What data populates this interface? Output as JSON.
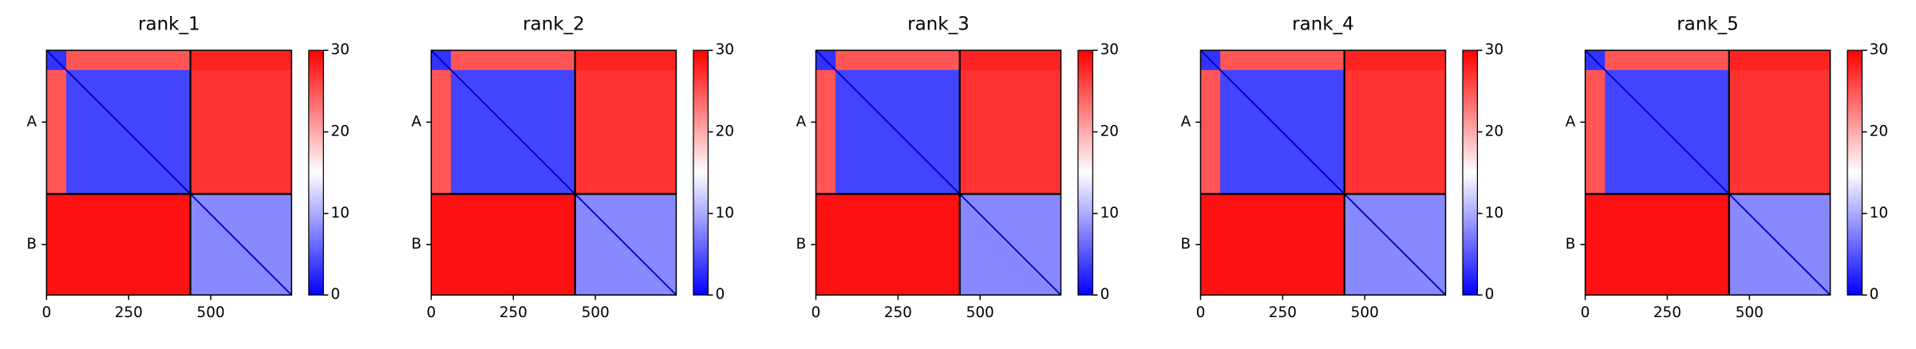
{
  "chart_data": [
    {
      "type": "heatmap",
      "title": "rank_1",
      "x_edges": [
        0,
        60,
        438,
        746
      ],
      "y_edges": [
        0,
        60,
        438,
        746
      ],
      "values": [
        [
          3,
          25,
          28
        ],
        [
          25,
          4,
          27
        ],
        [
          29,
          29,
          8
        ]
      ],
      "boundaries": [
        438
      ],
      "xlim": [
        0,
        746
      ],
      "xticks": [
        0,
        250,
        500
      ],
      "ylim": [
        746,
        0
      ],
      "yticks": [
        {
          "value": 219,
          "label": "A"
        },
        {
          "value": 592,
          "label": "B"
        }
      ],
      "colormap": "bwr",
      "clim": [
        0,
        30
      ],
      "cticks": [
        0,
        10,
        20,
        30
      ]
    },
    {
      "type": "heatmap",
      "title": "rank_2",
      "x_edges": [
        0,
        60,
        438,
        746
      ],
      "y_edges": [
        0,
        60,
        438,
        746
      ],
      "values": [
        [
          3,
          25,
          28
        ],
        [
          25,
          4,
          27
        ],
        [
          29,
          29,
          8
        ]
      ],
      "boundaries": [
        438
      ],
      "xlim": [
        0,
        746
      ],
      "xticks": [
        0,
        250,
        500
      ],
      "ylim": [
        746,
        0
      ],
      "yticks": [
        {
          "value": 219,
          "label": "A"
        },
        {
          "value": 592,
          "label": "B"
        }
      ],
      "colormap": "bwr",
      "clim": [
        0,
        30
      ],
      "cticks": [
        0,
        10,
        20,
        30
      ]
    },
    {
      "type": "heatmap",
      "title": "rank_3",
      "x_edges": [
        0,
        60,
        438,
        746
      ],
      "y_edges": [
        0,
        60,
        438,
        746
      ],
      "values": [
        [
          3,
          25,
          28
        ],
        [
          25,
          4,
          27
        ],
        [
          29,
          29,
          8
        ]
      ],
      "boundaries": [
        438
      ],
      "xlim": [
        0,
        746
      ],
      "xticks": [
        0,
        250,
        500
      ],
      "ylim": [
        746,
        0
      ],
      "yticks": [
        {
          "value": 219,
          "label": "A"
        },
        {
          "value": 592,
          "label": "B"
        }
      ],
      "colormap": "bwr",
      "clim": [
        0,
        30
      ],
      "cticks": [
        0,
        10,
        20,
        30
      ]
    },
    {
      "type": "heatmap",
      "title": "rank_4",
      "x_edges": [
        0,
        60,
        438,
        746
      ],
      "y_edges": [
        0,
        60,
        438,
        746
      ],
      "values": [
        [
          3,
          25,
          28
        ],
        [
          25,
          4,
          27
        ],
        [
          29,
          29,
          8
        ]
      ],
      "boundaries": [
        438
      ],
      "xlim": [
        0,
        746
      ],
      "xticks": [
        0,
        250,
        500
      ],
      "ylim": [
        746,
        0
      ],
      "yticks": [
        {
          "value": 219,
          "label": "A"
        },
        {
          "value": 592,
          "label": "B"
        }
      ],
      "colormap": "bwr",
      "clim": [
        0,
        30
      ],
      "cticks": [
        0,
        10,
        20,
        30
      ]
    },
    {
      "type": "heatmap",
      "title": "rank_5",
      "x_edges": [
        0,
        60,
        438,
        746
      ],
      "y_edges": [
        0,
        60,
        438,
        746
      ],
      "values": [
        [
          3,
          25,
          28
        ],
        [
          25,
          4,
          27
        ],
        [
          29,
          29,
          8
        ]
      ],
      "boundaries": [
        438
      ],
      "xlim": [
        0,
        746
      ],
      "xticks": [
        0,
        250,
        500
      ],
      "ylim": [
        746,
        0
      ],
      "yticks": [
        {
          "value": 219,
          "label": "A"
        },
        {
          "value": 592,
          "label": "B"
        }
      ],
      "colormap": "bwr",
      "clim": [
        0,
        30
      ],
      "cticks": [
        0,
        10,
        20,
        30
      ]
    }
  ]
}
